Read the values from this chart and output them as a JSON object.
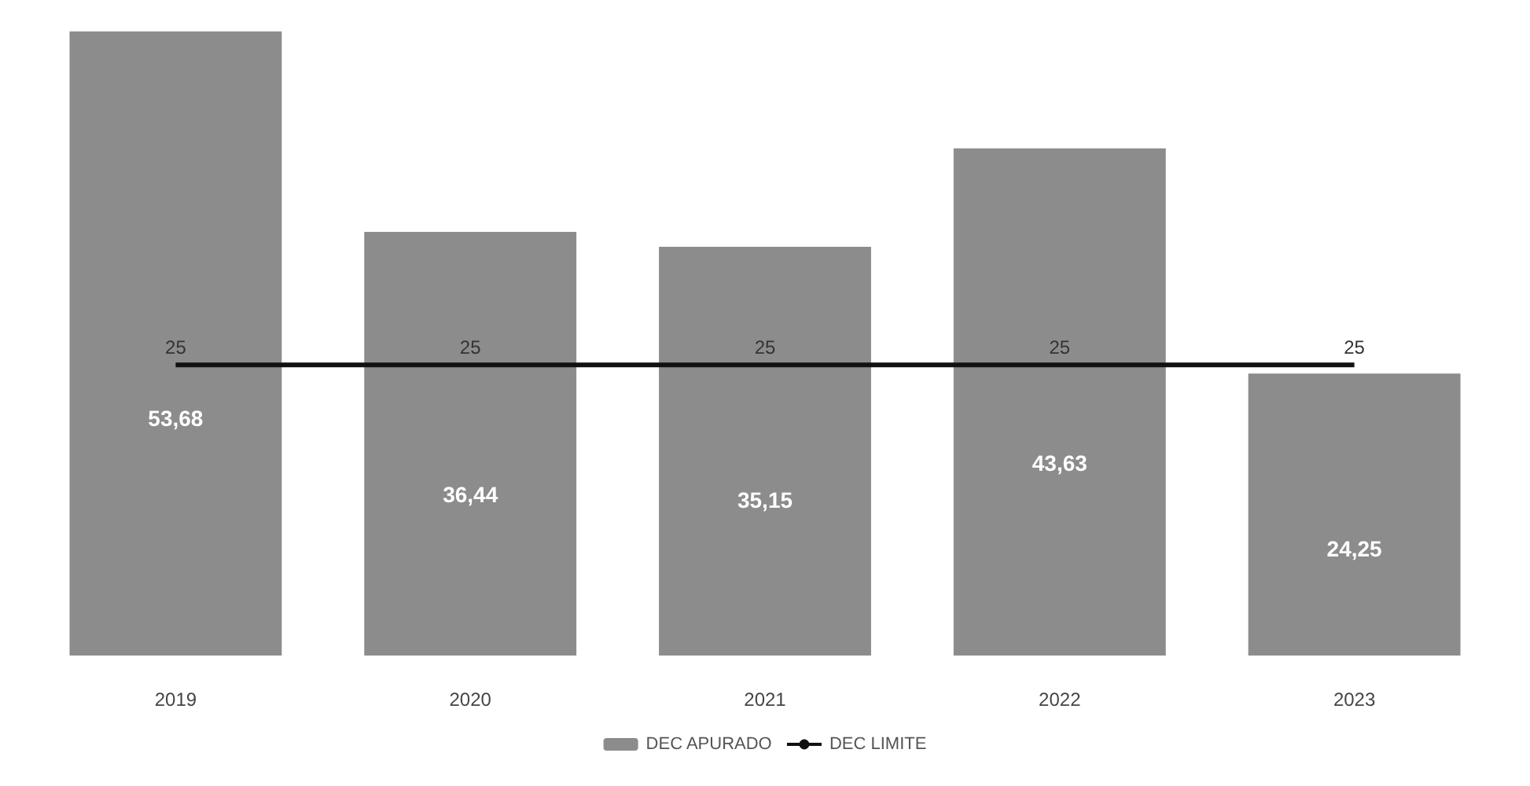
{
  "chart_data": {
    "type": "bar",
    "categories": [
      "2019",
      "2020",
      "2021",
      "2022",
      "2023"
    ],
    "series": [
      {
        "name": "DEC APURADO",
        "color": "#8c8c8c",
        "values": [
          53.68,
          36.44,
          35.15,
          43.63,
          24.25
        ],
        "value_labels": [
          "53,68",
          "36,44",
          "35,15",
          "43,63",
          "24,25"
        ]
      },
      {
        "name": "DEC LIMITE",
        "type": "line",
        "color": "#111111",
        "values": [
          25,
          25,
          25,
          25,
          25
        ],
        "value_labels": [
          "25",
          "25",
          "25",
          "25",
          "25"
        ]
      }
    ],
    "legend": "bottom",
    "grid": false,
    "marker": "none",
    "line_style": "solid",
    "tick_labels": "x"
  }
}
